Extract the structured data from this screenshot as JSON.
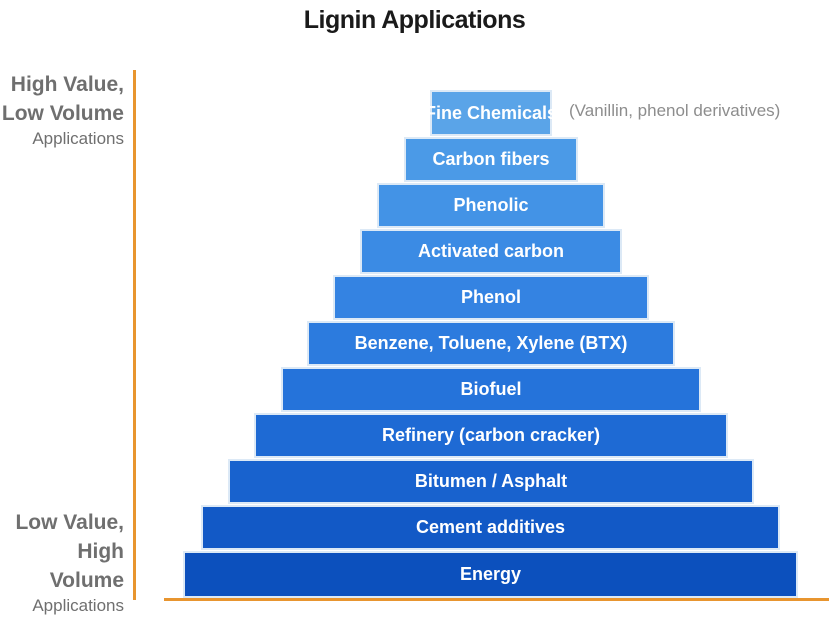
{
  "title": "Lignin Applications",
  "axis": {
    "top": {
      "line1": "High Value,",
      "line2": "Low Volume",
      "line3": "Applications"
    },
    "bottom": {
      "line1": "Low Value,",
      "line2": "High Volume",
      "line3": "Applications"
    },
    "color": "#e8952f"
  },
  "note": "(Vanillin, phenol derivatives)",
  "tiers": [
    {
      "label": "Fine Chemicals",
      "color": "#5aa4e8"
    },
    {
      "label": "Carbon fibers",
      "color": "#4b9ae7"
    },
    {
      "label": "Phenolic",
      "color": "#4393e6"
    },
    {
      "label": "Activated carbon",
      "color": "#3b8be4"
    },
    {
      "label": "Phenol",
      "color": "#3483e2"
    },
    {
      "label": "Benzene, Toluene, Xylene (BTX)",
      "color": "#2c7bde"
    },
    {
      "label": "Biofuel",
      "color": "#2573da"
    },
    {
      "label": "Refinery (carbon cracker)",
      "color": "#1e6ad4"
    },
    {
      "label": "Bitumen / Asphalt",
      "color": "#1862ce"
    },
    {
      "label": "Cement additives",
      "color": "#1259c6"
    },
    {
      "label": "Energy",
      "color": "#0c50bd"
    }
  ]
}
